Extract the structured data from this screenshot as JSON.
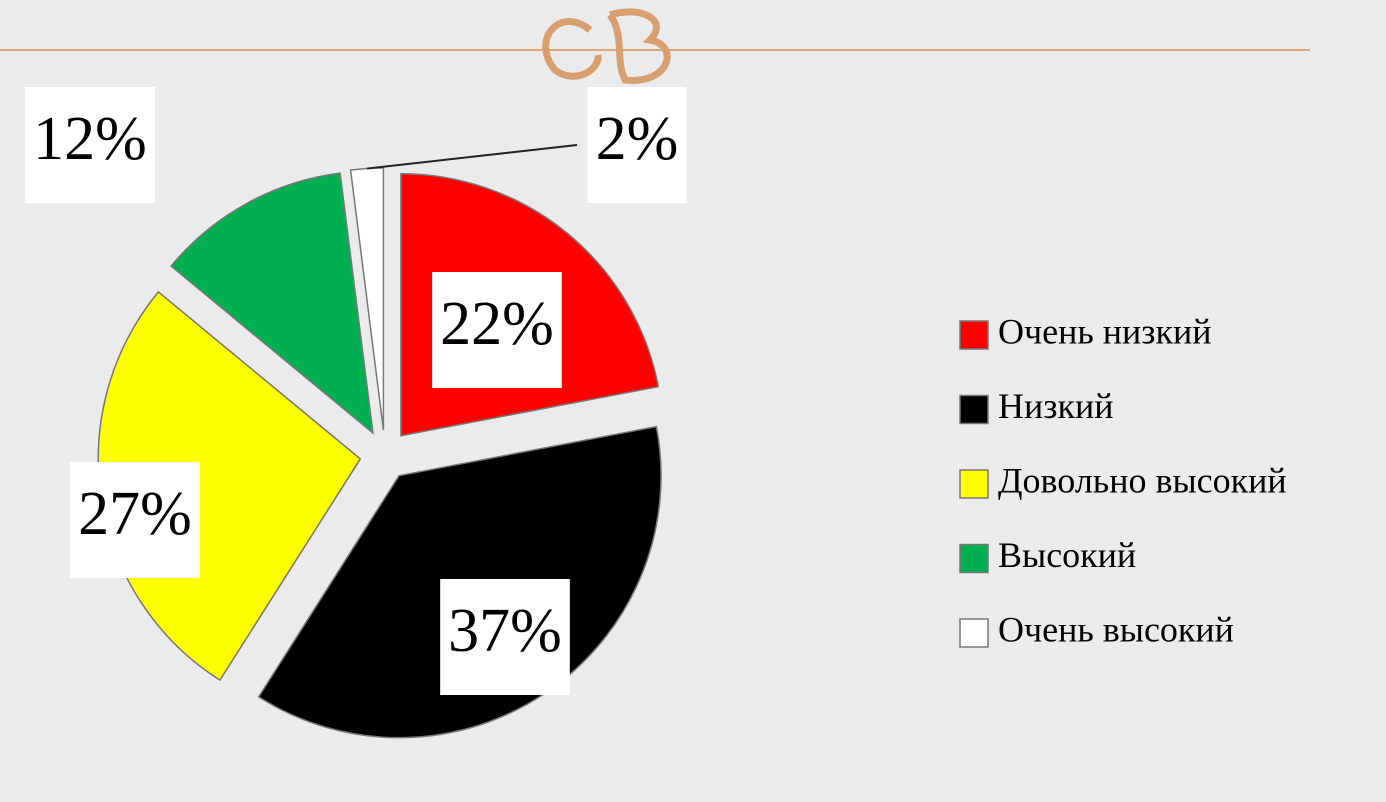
{
  "chart_data": {
    "type": "pie",
    "categories": [
      "Очень низкий",
      "Низкий",
      "Довольно высокий",
      "Высокий",
      "Очень высокий"
    ],
    "values": [
      22,
      37,
      27,
      12,
      2
    ],
    "value_labels": [
      "22%",
      "37%",
      "27%",
      "12%",
      "2%"
    ],
    "colors": [
      "#ff0000",
      "#000000",
      "#ffff00",
      "#00b050",
      "#ffffff"
    ],
    "legend": "right"
  }
}
